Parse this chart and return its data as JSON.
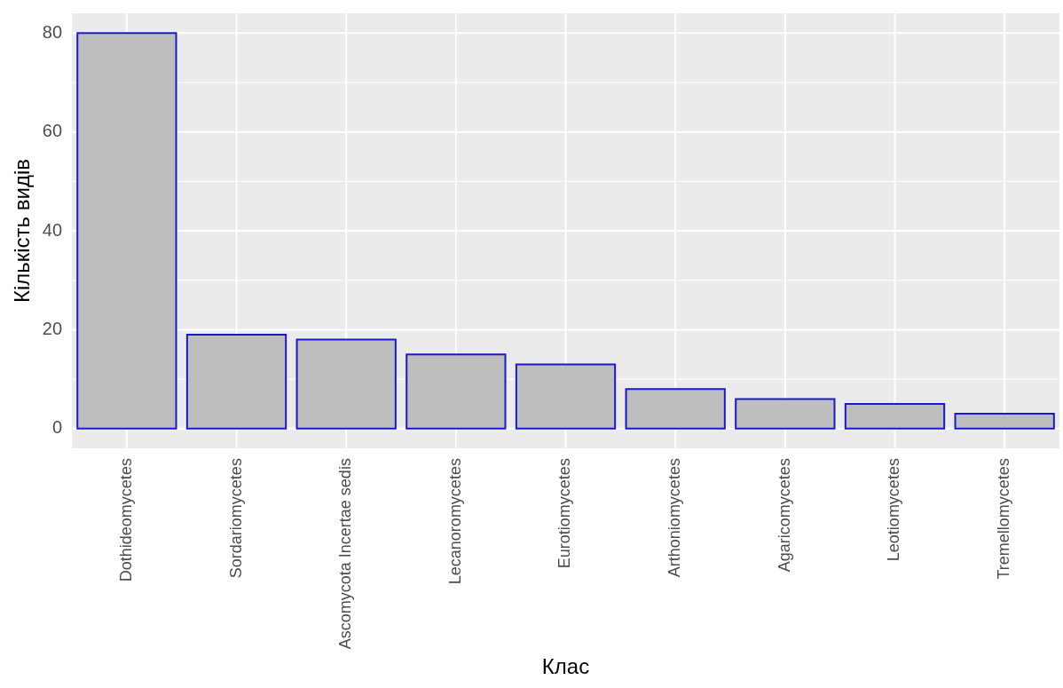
{
  "chart_data": {
    "type": "bar",
    "xlabel": "Клас",
    "ylabel": "Кількість видів",
    "categories": [
      "Dothideomycetes",
      "Sordariomycetes",
      "Ascomycota Incertae sedis",
      "Lecanoromycetes",
      "Eurotiomycetes",
      "Arthoniomycetes",
      "Agaricomycetes",
      "Leotiomycetes",
      "Tremellomycetes"
    ],
    "values": [
      80,
      19,
      18,
      15,
      13,
      8,
      6,
      5,
      3
    ],
    "color": "#bebebe",
    "ylim": [
      -4,
      84
    ],
    "yticks": [
      0,
      20,
      40,
      60,
      80
    ],
    "grid": true
  }
}
